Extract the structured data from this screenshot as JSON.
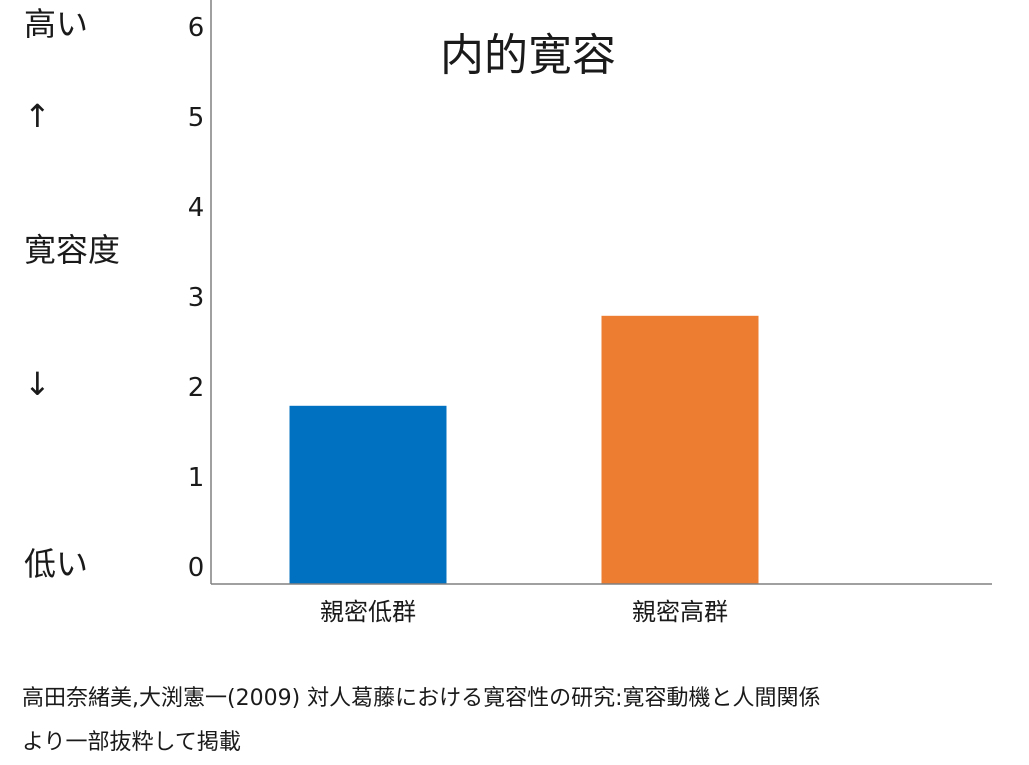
{
  "side_labels": {
    "high": "高い",
    "up_arrow": "↑",
    "middle": "寛容度",
    "down_arrow": "↓",
    "low": "低い"
  },
  "reference": {
    "line1": "高田奈緒美,大渕憲一(2009) 対人葛藤における寛容性の研究:寛容動機と人間関係",
    "line2": " より一部抜粋して掲載"
  },
  "colors": {
    "series": [
      "#0070c0",
      "#ed7d31"
    ],
    "axis": "#808080",
    "text": "#1a1a1a"
  },
  "chart_data": {
    "type": "bar",
    "title": "内的寛容",
    "categories": [
      "親密低群",
      "親密高群"
    ],
    "values": [
      1.98,
      2.98
    ],
    "ylim": [
      0,
      6.5
    ],
    "yticks": [
      0,
      1,
      2,
      3,
      4,
      5,
      6
    ],
    "xlabel": "",
    "ylabel": "",
    "grid": false,
    "legend": "none"
  }
}
